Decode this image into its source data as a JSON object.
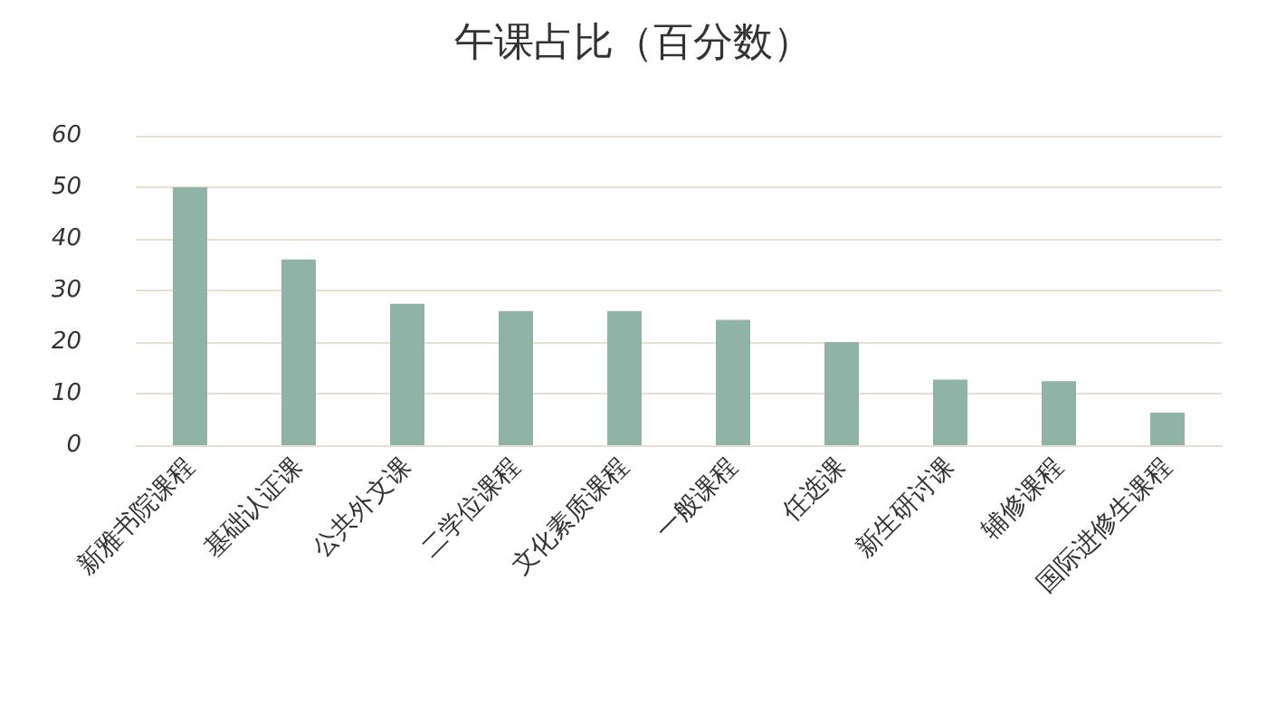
{
  "chart_data": {
    "type": "bar",
    "title": "午课占比（百分数）",
    "categories": [
      "新雅书院课程",
      "基础认证课",
      "公共外文课",
      "二学位课程",
      "文化素质课程",
      "一般课程",
      "任选课",
      "新生研讨课",
      "辅修课程",
      "国际进修生课程"
    ],
    "values": [
      50,
      36,
      27.4,
      26,
      26,
      24.3,
      20,
      12.7,
      12.4,
      6.3
    ],
    "color": "#8fb3a6",
    "ylim": [
      0,
      60
    ],
    "yticks": [
      0,
      10,
      20,
      30,
      40,
      50,
      60
    ],
    "grid": "y"
  }
}
